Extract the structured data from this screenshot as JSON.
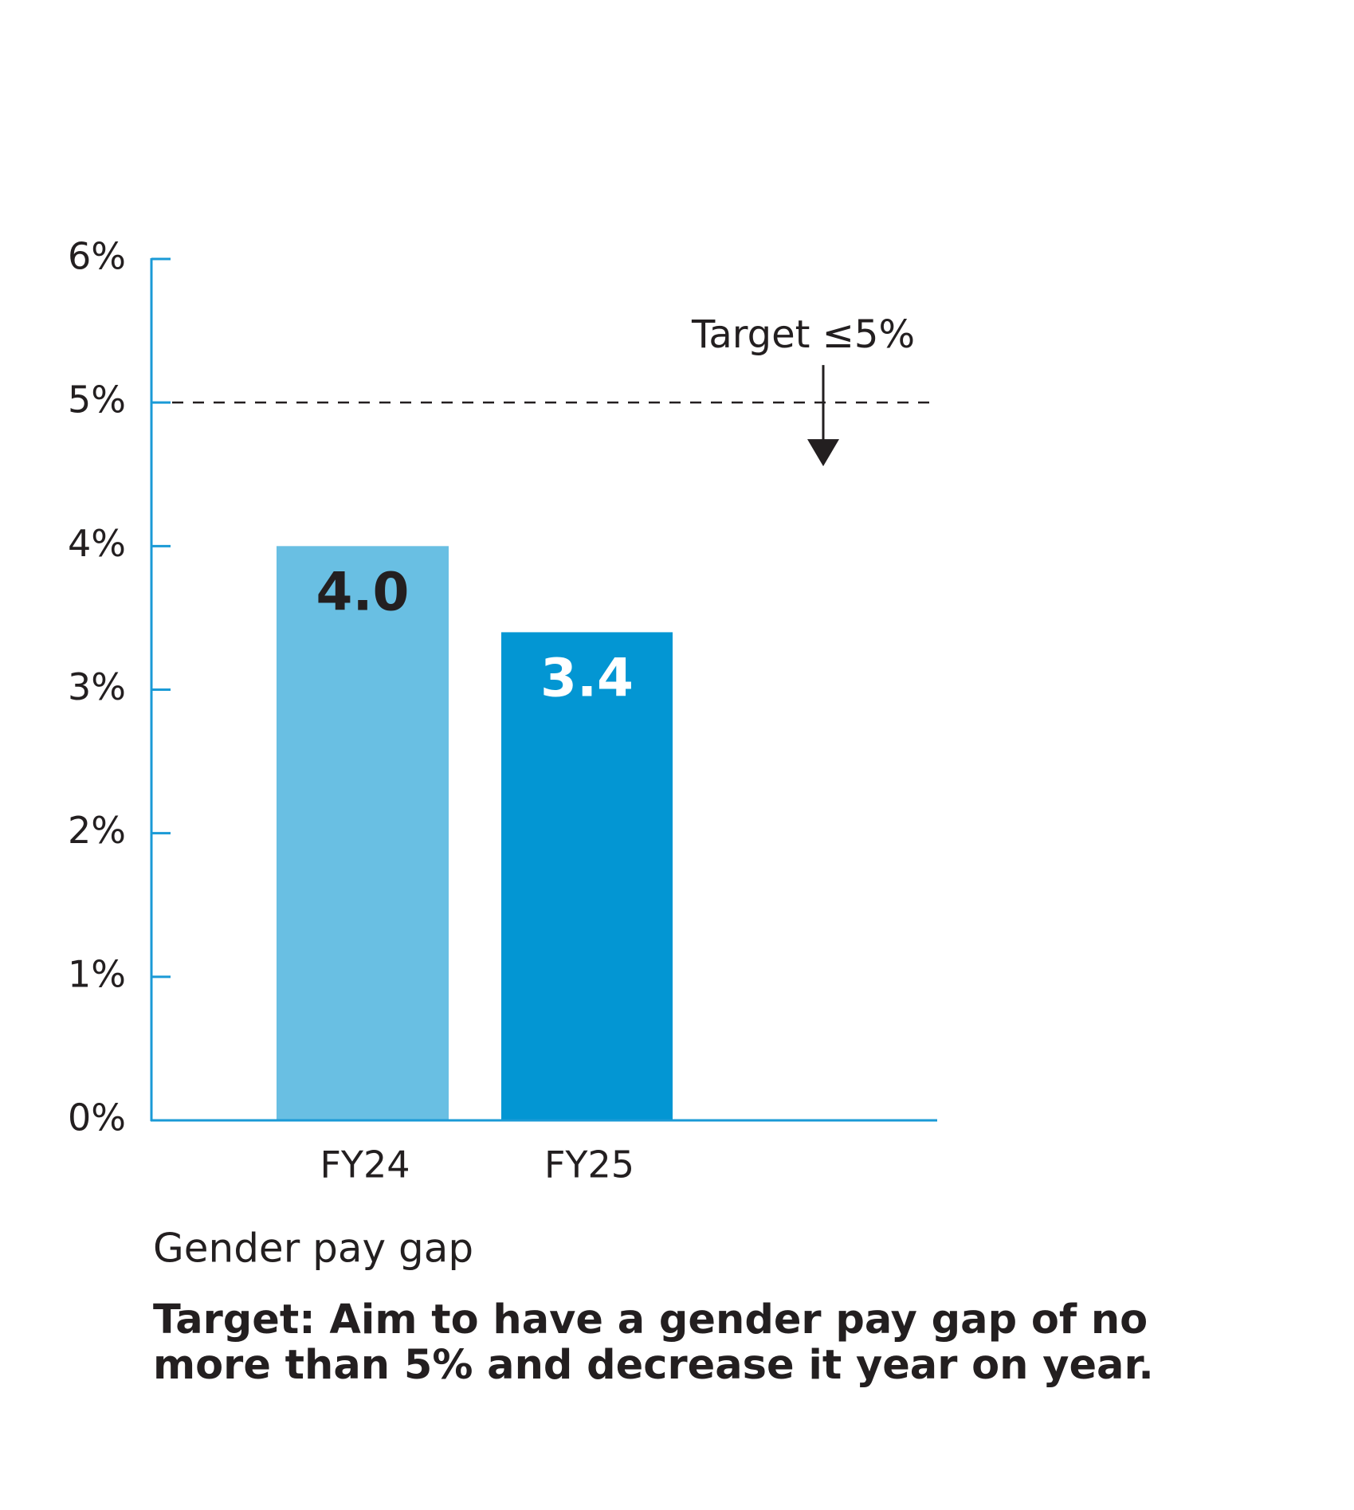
{
  "chart_data": {
    "type": "bar",
    "categories": [
      "FY24",
      "FY25"
    ],
    "values": [
      4.0,
      3.4
    ],
    "value_labels": [
      "4.0",
      "3.4"
    ],
    "colors": [
      "#69bfe3",
      "#0396d3"
    ],
    "value_label_colors": [
      "#231f20",
      "#ffffff"
    ],
    "axis_color": "#1a9ad6",
    "ylim": [
      0,
      6
    ],
    "yticks": [
      {
        "value": 0,
        "label": "0%"
      },
      {
        "value": 1,
        "label": "1%"
      },
      {
        "value": 2,
        "label": "2%"
      },
      {
        "value": 3,
        "label": "3%"
      },
      {
        "value": 4,
        "label": "4%"
      },
      {
        "value": 5,
        "label": "5%"
      },
      {
        "value": 6,
        "label": "6%"
      }
    ],
    "target": {
      "value": 5,
      "label": "Target ≤5%"
    },
    "x_label": "Gender pay gap",
    "note": [
      "Target: Aim to have a gender pay gap of no",
      "more than 5% and decrease it year on year."
    ]
  }
}
